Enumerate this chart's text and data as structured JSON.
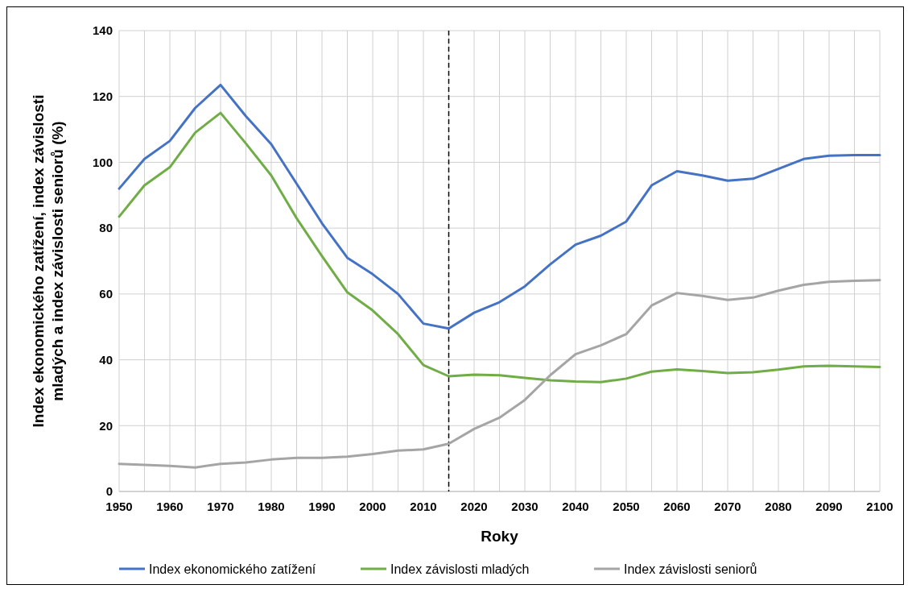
{
  "chart_data": {
    "type": "line",
    "xlabel": "Roky",
    "ylabel": "Index ekonomického zatížení, index závislosti mladých a index závislosti seniorů (%)",
    "x": [
      1950,
      1955,
      1960,
      1965,
      1970,
      1975,
      1980,
      1985,
      1990,
      1995,
      2000,
      2005,
      2010,
      2015,
      2020,
      2025,
      2030,
      2035,
      2040,
      2045,
      2050,
      2055,
      2060,
      2065,
      2070,
      2075,
      2080,
      2085,
      2090,
      2095,
      2100
    ],
    "series": [
      {
        "name": "Index ekonomického zatížení",
        "color": "#4472c4",
        "values": [
          92,
          101,
          106.5,
          116.5,
          123.5,
          114,
          105.5,
          93.5,
          81.5,
          71,
          66,
          60,
          51,
          49.5,
          54.3,
          57.5,
          62.3,
          69,
          75,
          77.7,
          82,
          93,
          97.3,
          96,
          94.4,
          95,
          98,
          101,
          102,
          102.2,
          102.2
        ]
      },
      {
        "name": "Index závislosti mladých",
        "color": "#70ad47",
        "values": [
          83.5,
          93,
          98.5,
          109,
          115,
          105.7,
          96,
          83,
          71.5,
          60.5,
          55,
          47.8,
          38.4,
          35,
          35.5,
          35.3,
          34.5,
          33.8,
          33.4,
          33.2,
          34.3,
          36.4,
          37.1,
          36.6,
          36,
          36.2,
          37,
          38,
          38.2,
          38,
          37.8
        ]
      },
      {
        "name": "Index závislosti seniorů",
        "color": "#a5a5a5",
        "values": [
          8.4,
          8.1,
          7.8,
          7.3,
          8.4,
          8.8,
          9.7,
          10.2,
          10.2,
          10.6,
          11.4,
          12.4,
          12.8,
          14.5,
          19,
          22.4,
          27.8,
          35.3,
          41.7,
          44.4,
          47.8,
          56.5,
          60.3,
          59.4,
          58.2,
          58.9,
          61,
          62.8,
          63.7,
          64,
          64.2
        ]
      }
    ],
    "xlim": [
      1950,
      2100
    ],
    "xticks": [
      1950,
      {
        "value": 1955,
        "label": null
      },
      1960,
      {
        "value": 1965,
        "label": null
      },
      1970,
      {
        "value": 1975,
        "label": null
      },
      1980,
      {
        "value": 1985,
        "label": null
      },
      1990,
      {
        "value": 1995,
        "label": null
      },
      2000,
      {
        "value": 2005,
        "label": null
      },
      2010,
      {
        "value": 2015,
        "label": null
      },
      2020,
      {
        "value": 2025,
        "label": null
      },
      2030,
      {
        "value": 2035,
        "label": null
      },
      2040,
      {
        "value": 2045,
        "label": null
      },
      2050,
      {
        "value": 2055,
        "label": null
      },
      2060,
      {
        "value": 2065,
        "label": null
      },
      2070,
      {
        "value": 2075,
        "label": null
      },
      2080,
      {
        "value": 2085,
        "label": null
      },
      2090,
      {
        "value": 2095,
        "label": null
      },
      2100
    ],
    "ylim": [
      0,
      140
    ],
    "yticks": [
      0,
      20,
      40,
      60,
      80,
      100,
      120,
      140
    ],
    "grid": true,
    "legend": "bottom",
    "line_style": "solid",
    "marker": "none",
    "ref_lines": [
      {
        "axis": "x",
        "value": 2015,
        "color": "#000000",
        "line_style": "dashed"
      }
    ]
  }
}
